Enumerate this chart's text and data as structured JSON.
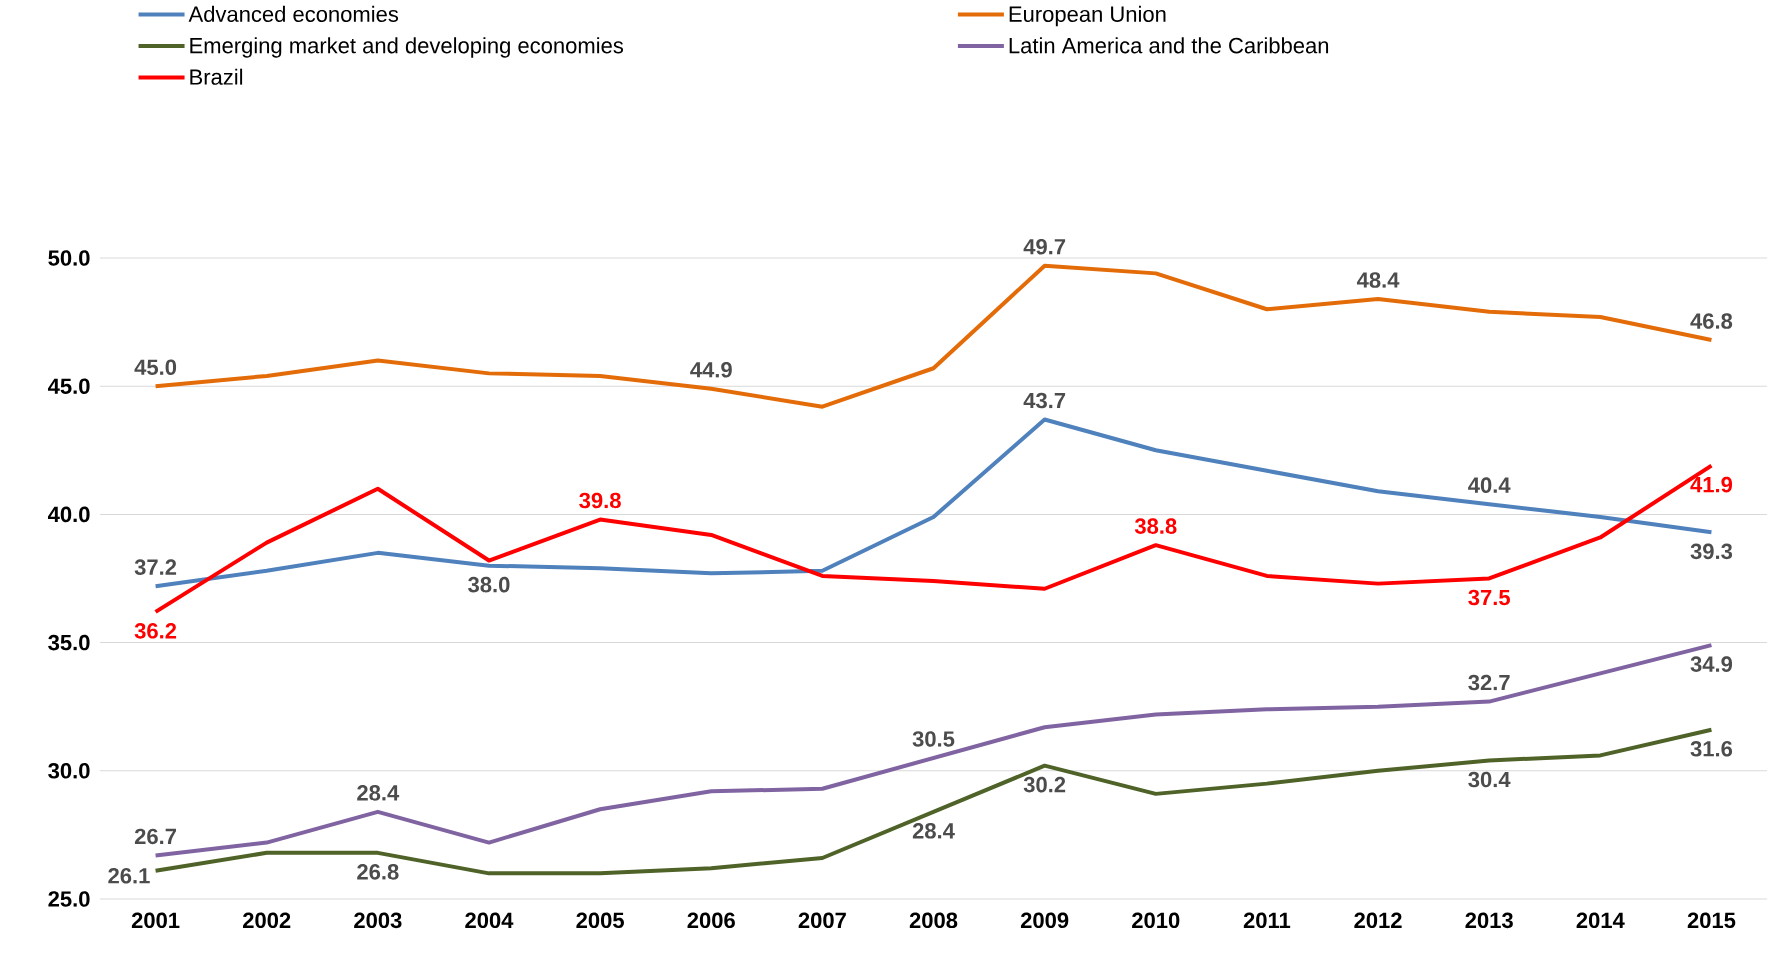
{
  "chart_data": {
    "type": "line",
    "categories": [
      "2001",
      "2002",
      "2003",
      "2004",
      "2005",
      "2006",
      "2007",
      "2008",
      "2009",
      "2010",
      "2011",
      "2012",
      "2013",
      "2014",
      "2015"
    ],
    "series": [
      {
        "name": "Advanced economies",
        "color": "#4f81bd",
        "values": [
          37.2,
          37.8,
          38.5,
          38.0,
          37.9,
          37.7,
          37.8,
          39.9,
          43.7,
          42.5,
          41.7,
          40.9,
          40.4,
          39.9,
          39.3
        ],
        "value_labels": [
          "37.2",
          null,
          null,
          "38.0",
          null,
          null,
          null,
          null,
          "43.7",
          null,
          null,
          null,
          "40.4",
          null,
          "39.3"
        ]
      },
      {
        "name": "European Union",
        "color": "#e36c09",
        "values": [
          45.0,
          45.4,
          46.0,
          45.5,
          45.4,
          44.9,
          44.2,
          45.7,
          49.7,
          49.4,
          48.0,
          48.4,
          47.9,
          47.7,
          46.8
        ],
        "value_labels": [
          "45.0",
          null,
          null,
          null,
          null,
          "44.9",
          null,
          null,
          "49.7",
          null,
          null,
          "48.4",
          null,
          null,
          "46.8"
        ]
      },
      {
        "name": "Emerging market and developing economies",
        "color": "#4f6228",
        "values": [
          26.1,
          26.8,
          26.8,
          26.0,
          26.0,
          26.2,
          26.6,
          28.4,
          30.2,
          29.1,
          29.5,
          30.0,
          30.4,
          30.6,
          31.6
        ],
        "value_labels": [
          "26.1",
          null,
          "26.8",
          null,
          null,
          null,
          null,
          "28.4",
          "30.2",
          null,
          null,
          null,
          "30.4",
          null,
          "31.6"
        ]
      },
      {
        "name": "Latin America and the Caribbean",
        "color": "#8064a2",
        "values": [
          26.7,
          27.2,
          28.4,
          27.2,
          28.5,
          29.2,
          29.3,
          30.5,
          31.7,
          32.2,
          32.4,
          32.5,
          32.7,
          33.8,
          34.9
        ],
        "value_labels": [
          "26.7",
          null,
          "28.4",
          null,
          null,
          null,
          null,
          "30.5",
          null,
          null,
          null,
          null,
          "32.7",
          null,
          "34.9"
        ]
      },
      {
        "name": "Brazil",
        "color": "#ff0000",
        "values": [
          36.2,
          38.9,
          41.0,
          38.2,
          39.8,
          39.2,
          37.6,
          37.4,
          37.1,
          38.8,
          37.6,
          37.3,
          37.5,
          39.1,
          41.9
        ],
        "value_labels": [
          "36.2",
          null,
          null,
          null,
          "39.8",
          null,
          null,
          null,
          null,
          "38.8",
          null,
          null,
          "37.5",
          null,
          "41.9"
        ]
      }
    ],
    "ylim": [
      25,
      50
    ],
    "yticks": [
      {
        "value": 25,
        "label": "25.0"
      },
      {
        "value": 30,
        "label": "30.0"
      },
      {
        "value": 35,
        "label": "35.0"
      },
      {
        "value": 40,
        "label": "40.0"
      },
      {
        "value": 45,
        "label": "45.0"
      },
      {
        "value": 50,
        "label": "50.0"
      }
    ],
    "grid": "y",
    "legend": "top"
  }
}
